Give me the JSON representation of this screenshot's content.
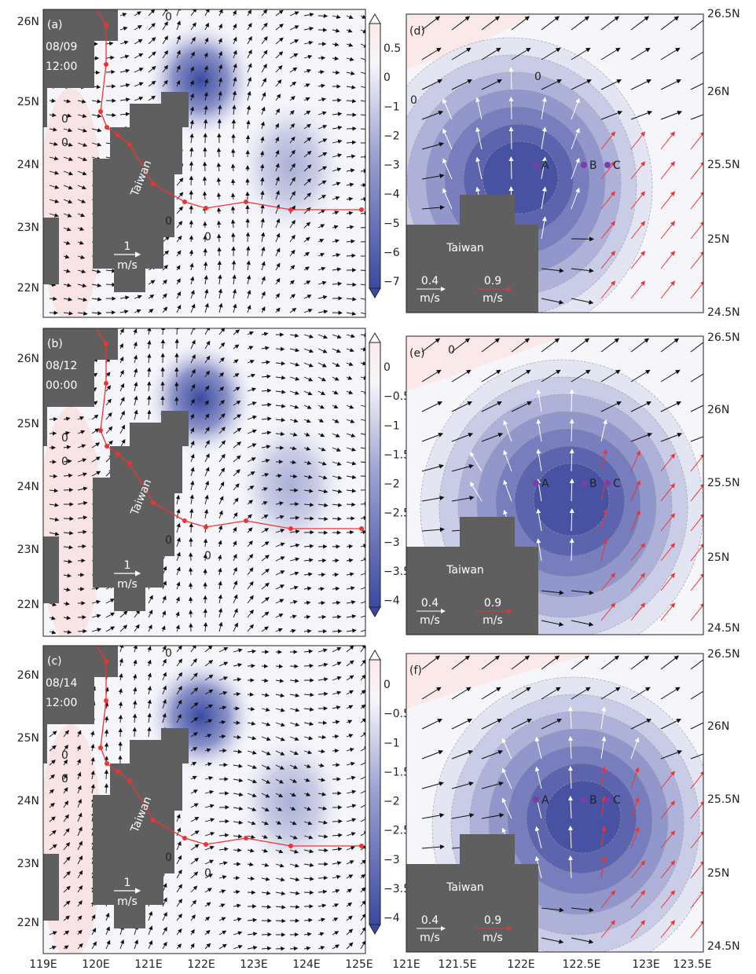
{
  "left_panels": [
    {
      "label": "(a)",
      "date": "08/09",
      "time": "12:00",
      "land": "Taiwan",
      "scale": "1",
      "scale_unit": "m/s",
      "zero_labels": [
        "0",
        "0",
        "0",
        "0",
        "0"
      ],
      "colorbar": [
        "0.5",
        "0",
        "−1",
        "−2",
        "−3",
        "−4",
        "−5",
        "−6",
        "−7"
      ]
    },
    {
      "label": "(b)",
      "date": "08/12",
      "time": "00:00",
      "land": "Taiwan",
      "scale": "1",
      "scale_unit": "m/s",
      "zero_labels": [
        "0",
        "0",
        "0",
        "0"
      ],
      "colorbar": [
        "0",
        "−0.5",
        "−1",
        "−1.5",
        "−2",
        "−2.5",
        "−3",
        "−3.5",
        "−4"
      ]
    },
    {
      "label": "(c)",
      "date": "08/14",
      "time": "12:00",
      "land": "Taiwan",
      "scale": "1",
      "scale_unit": "m/s",
      "zero_labels": [
        "0",
        "0",
        "0",
        "0",
        "0"
      ],
      "colorbar": [
        "0",
        "−0.5",
        "−1",
        "−1.5",
        "−2",
        "−2.5",
        "−3",
        "−3.5",
        "−4"
      ]
    }
  ],
  "right_panels": [
    {
      "label": "(d)",
      "land": "Taiwan",
      "scale_1": "0.4",
      "unit_1": "m/s",
      "scale_2": "0.9",
      "unit_2": "m/s",
      "points": [
        "A",
        "B",
        "C"
      ],
      "zero_labels": [
        "0",
        "0"
      ]
    },
    {
      "label": "(e)",
      "land": "Taiwan",
      "scale_1": "0.4",
      "unit_1": "m/s",
      "scale_2": "0.9",
      "unit_2": "m/s",
      "points": [
        "A",
        "B",
        "C"
      ],
      "zero_labels": [
        "0"
      ]
    },
    {
      "label": "(f)",
      "land": "Taiwan",
      "scale_1": "0.4",
      "unit_1": "m/s",
      "scale_2": "0.9",
      "unit_2": "m/s",
      "points": [
        "A",
        "B",
        "C"
      ],
      "zero_labels": []
    }
  ],
  "left_lat_labels": [
    "26N",
    "25N",
    "24N",
    "23N",
    "22N"
  ],
  "left_lon_labels": [
    "119E",
    "120E",
    "121E",
    "122E",
    "123E",
    "124E",
    "125E"
  ],
  "right_lat_labels": [
    "26.5N",
    "26N",
    "25.5N",
    "25N",
    "24.5N"
  ],
  "right_lon_labels": [
    "121E",
    "121.5E",
    "122E",
    "122.5E",
    "123E",
    "123.5E"
  ]
}
